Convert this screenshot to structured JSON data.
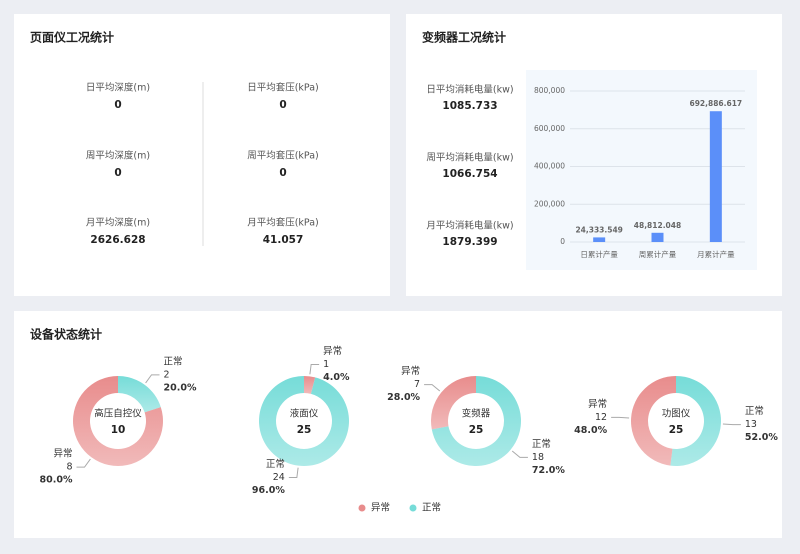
{
  "depth_panel": {
    "title": "页面仪工况统计",
    "columns": [
      [
        {
          "label": "日平均深度(m)",
          "value": 0
        },
        {
          "label": "周平均深度(m)",
          "value": 0
        },
        {
          "label": "月平均深度(m)",
          "value": 2626.628
        }
      ],
      [
        {
          "label": "日平均套压(kPa)",
          "value": 0
        },
        {
          "label": "周平均套压(kPa)",
          "value": 0
        },
        {
          "label": "月平均套压(kPa)",
          "value": 41.057
        }
      ]
    ]
  },
  "inverter_panel": {
    "title": "变频器工况统计",
    "stats": [
      {
        "label": "日平均消耗电量(kw)",
        "value": 1085.733
      },
      {
        "label": "周平均消耗电量(kw)",
        "value": 1066.754
      },
      {
        "label": "月平均消耗电量(kw)",
        "value": 1879.399
      }
    ]
  },
  "status_panel": {
    "title": "设备状态统计",
    "legend": [
      {
        "name": "异常",
        "color": "#e88c8c"
      },
      {
        "name": "正常",
        "color": "#76dcd8"
      }
    ]
  },
  "chart_data": [
    {
      "type": "bar",
      "categories": [
        "日累计产量",
        "周累计产量",
        "月累计产量"
      ],
      "values": [
        24333.549,
        48812.048,
        692886.617
      ],
      "value_labels": [
        "24,333.549",
        "48,812.048",
        "692,886.617"
      ],
      "color": "#5b8ff9",
      "ylim": [
        0,
        800000
      ],
      "yticks": [
        0,
        {
          "value": 200000,
          "label": "200,000"
        },
        {
          "value": 400000,
          "label": "400,000"
        },
        {
          "value": 600000,
          "label": "600,000"
        },
        {
          "value": 800000,
          "label": "800,000"
        }
      ],
      "grid": true
    },
    {
      "type": "donut",
      "center_label": "高压自控仪",
      "total": 10,
      "categories": [
        "正常",
        "异常"
      ],
      "values": [
        2,
        8
      ],
      "percent_labels": [
        "20.0%",
        "80.0%"
      ],
      "colors": [
        "#76dcd8",
        "#e88c8c"
      ]
    },
    {
      "type": "donut",
      "center_label": "液面仪",
      "total": 25,
      "categories": [
        "异常",
        "正常"
      ],
      "values": [
        1,
        24
      ],
      "percent_labels": [
        "4.0%",
        "96.0%"
      ],
      "colors": [
        "#e88c8c",
        "#76dcd8"
      ]
    },
    {
      "type": "donut",
      "center_label": "变频器",
      "total": 25,
      "categories": [
        "正常",
        "异常"
      ],
      "values": [
        18,
        7
      ],
      "percent_labels": [
        "72.0%",
        "28.0%"
      ],
      "colors": [
        "#76dcd8",
        "#e88c8c"
      ]
    },
    {
      "type": "donut",
      "center_label": "功图仪",
      "total": 25,
      "categories": [
        "正常",
        "异常"
      ],
      "values": [
        13,
        12
      ],
      "percent_labels": [
        "52.0%",
        "48.0%"
      ],
      "colors": [
        "#76dcd8",
        "#e88c8c"
      ]
    }
  ]
}
